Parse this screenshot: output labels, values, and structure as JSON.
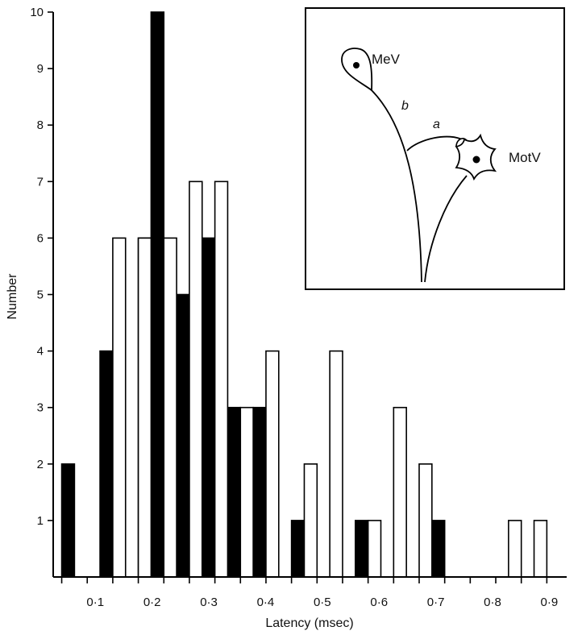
{
  "chart_data": {
    "type": "bar",
    "xlabel": "Latency (msec)",
    "ylabel": "Number",
    "ylim": [
      0,
      10
    ],
    "xlim": [
      0.03,
      0.935
    ],
    "y_ticks": [
      "1",
      "2",
      "3",
      "4",
      "5",
      "6",
      "7",
      "8",
      "9",
      "10"
    ],
    "x_ticks": [
      {
        "value": 0.1,
        "label": "0·1"
      },
      {
        "value": 0.2,
        "label": "0·2"
      },
      {
        "value": 0.3,
        "label": "0·3"
      },
      {
        "value": 0.4,
        "label": "0·4"
      },
      {
        "value": 0.5,
        "label": "0·5"
      },
      {
        "value": 0.6,
        "label": "0·6"
      },
      {
        "value": 0.7,
        "label": "0·7"
      },
      {
        "value": 0.8,
        "label": "0·8"
      },
      {
        "value": 0.9,
        "label": "0·9"
      }
    ],
    "bin_width": 0.0225,
    "grid": false,
    "series": [
      {
        "fill": "#000000",
        "bins": [
          {
            "start": 0.045,
            "value": 2
          },
          {
            "start": 0.1125,
            "value": 4
          },
          {
            "start": 0.18,
            "value": 6
          },
          {
            "start": 0.2025,
            "value": 10
          },
          {
            "start": 0.2475,
            "value": 5
          },
          {
            "start": 0.2925,
            "value": 6
          },
          {
            "start": 0.3375,
            "value": 3
          },
          {
            "start": 0.3825,
            "value": 3
          },
          {
            "start": 0.45,
            "value": 1
          },
          {
            "start": 0.5625,
            "value": 1
          },
          {
            "start": 0.6975,
            "value": 1
          }
        ]
      },
      {
        "fill": "#ffffff",
        "bins": [
          {
            "start": 0.135,
            "value": 6
          },
          {
            "start": 0.18,
            "value": 6
          },
          {
            "start": 0.225,
            "value": 6
          },
          {
            "start": 0.27,
            "value": 7
          },
          {
            "start": 0.315,
            "value": 7
          },
          {
            "start": 0.36,
            "value": 3
          },
          {
            "start": 0.405,
            "value": 4
          },
          {
            "start": 0.4725,
            "value": 2
          },
          {
            "start": 0.5175,
            "value": 4
          },
          {
            "start": 0.585,
            "value": 1
          },
          {
            "start": 0.63,
            "value": 3
          },
          {
            "start": 0.675,
            "value": 2
          },
          {
            "start": 0.8325,
            "value": 1
          },
          {
            "start": 0.8775,
            "value": 1
          }
        ]
      }
    ],
    "inset": {
      "labels": {
        "mev": "MeV",
        "motv": "MotV",
        "a": "a",
        "b": "b"
      }
    }
  }
}
